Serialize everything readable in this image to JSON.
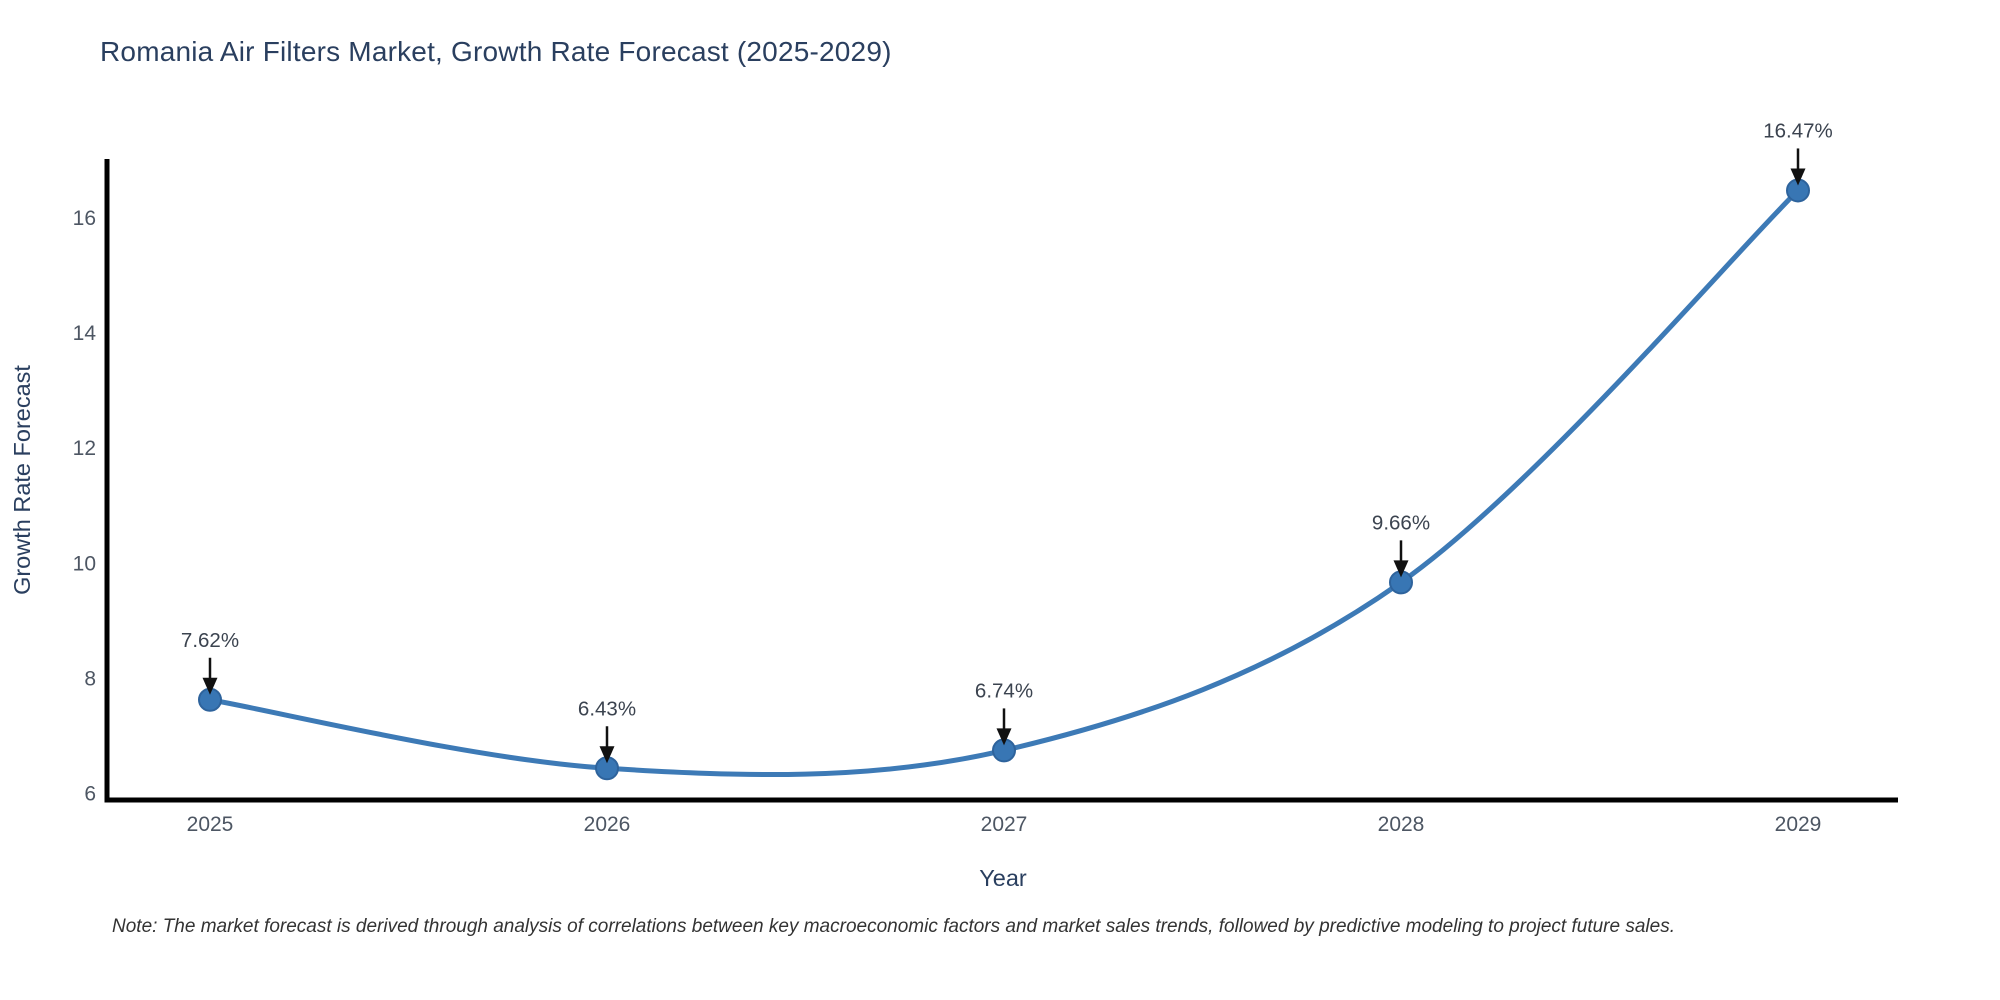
{
  "title": "Romania Air Filters Market, Growth Rate Forecast (2025-2029)",
  "note": "Note: The market forecast is derived through analysis of correlations between key macroeconomic factors and market sales trends, followed by predictive modeling to project future sales.",
  "colors": {
    "line": "#3d7ab6",
    "marker_fill": "#3876b4",
    "marker_edge": "#2e639c",
    "axis_line": "#000000",
    "title_text": "#2a3f5f",
    "tick_text": "#4d5663",
    "axis_label_text": "#2a3f5f",
    "annotation_text": "#3b434f",
    "annotation_arrow": "#111111",
    "note_text": "#333333",
    "background": "#ffffff"
  },
  "chart_data": {
    "type": "line",
    "title": "Romania Air Filters Market, Growth Rate Forecast (2025-2029)",
    "xlabel": "Year",
    "ylabel": "Growth Rate Forecast",
    "x": [
      2025,
      2026,
      2027,
      2028,
      2029
    ],
    "values": [
      7.62,
      6.43,
      6.74,
      9.66,
      16.47
    ],
    "point_labels": [
      "7.62%",
      "6.43%",
      "6.74%",
      "9.66%",
      "16.47%"
    ],
    "xticks": [
      "2025",
      "2026",
      "2027",
      "2028",
      "2029"
    ],
    "yticks": [
      6,
      8,
      10,
      12,
      14,
      16
    ],
    "ylim": [
      5.85,
      17.1
    ],
    "xlim": [
      2024.74,
      2029.25
    ],
    "line_shape": "spline",
    "grid": false,
    "legend": "none",
    "marker": "circle"
  }
}
